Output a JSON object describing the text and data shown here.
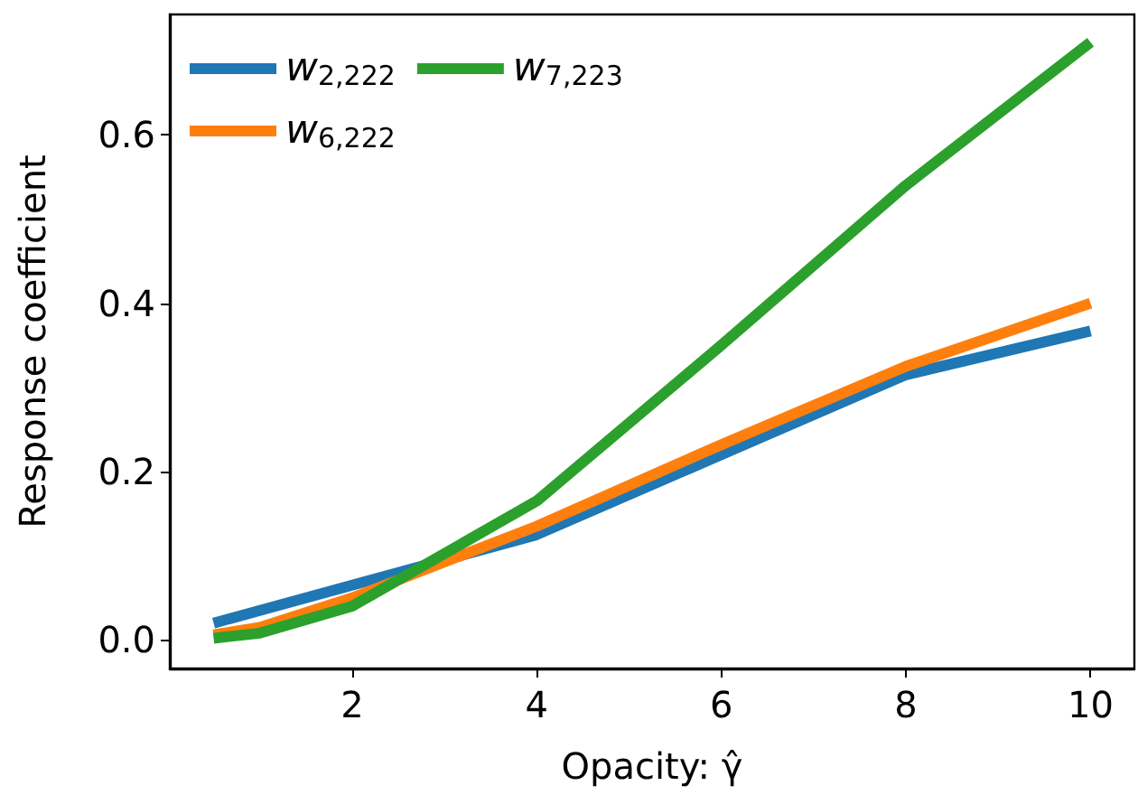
{
  "chart_data": {
    "type": "line",
    "xlabel": "Opacity: γ̂",
    "ylabel": "Response coefficient",
    "x": [
      0.5,
      1,
      2,
      4,
      6,
      8,
      10
    ],
    "series": [
      {
        "name": "w$_{2,222}$",
        "color": "#1f77b4",
        "values": [
          0.02,
          0.035,
          0.065,
          0.125,
          0.22,
          0.315,
          0.367
        ]
      },
      {
        "name": "w$_{6,222}$",
        "color": "#ff7f0e",
        "values": [
          0.006,
          0.015,
          0.05,
          0.135,
          0.232,
          0.325,
          0.4
        ]
      },
      {
        "name": "w$_{7,223}$",
        "color": "#2ca02c",
        "values": [
          0.002,
          0.008,
          0.04,
          0.165,
          0.35,
          0.54,
          0.71
        ]
      }
    ],
    "xlim": [
      0.025,
      10.475
    ],
    "xticks": [
      2,
      4,
      6,
      8,
      10
    ],
    "ylim": [
      -0.034,
      0.743
    ],
    "yticks": [
      {
        "value": 0,
        "label": "0.0"
      },
      0.2,
      0.4,
      0.6
    ],
    "grid": false,
    "legend": "top left",
    "marker": "none",
    "line_style": "solid"
  }
}
